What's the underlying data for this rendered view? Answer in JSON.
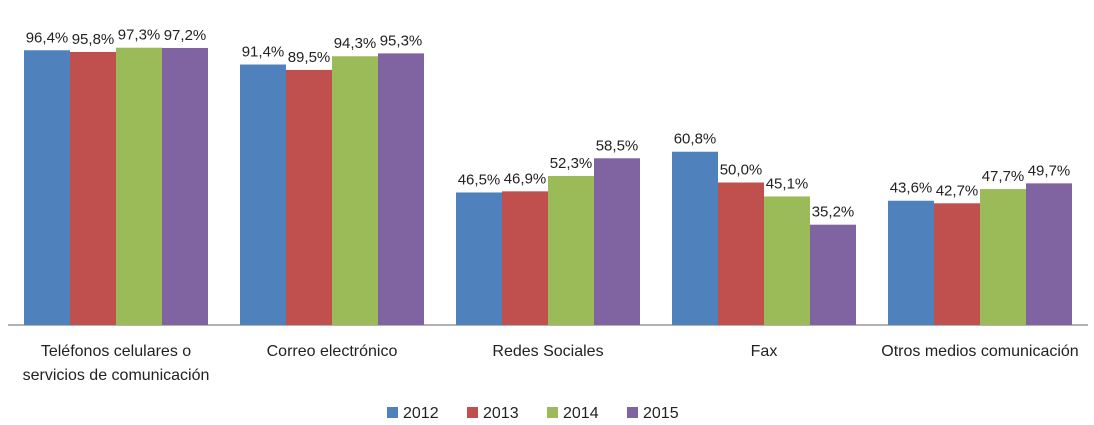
{
  "chart_data": {
    "type": "bar",
    "categories": [
      "Teléfonos celulares o servicios de comunicación",
      "Correo electrónico",
      "Redes Sociales",
      "Fax",
      "Otros medios comunicación"
    ],
    "series": [
      {
        "name": "2012",
        "color": "#4f81bd",
        "values": [
          96.4,
          91.4,
          46.5,
          60.8,
          43.6
        ],
        "value_labels": [
          "96,4%",
          "91,4%",
          "46,5%",
          "60,8%",
          "43,6%"
        ]
      },
      {
        "name": "2013",
        "color": "#c0504d",
        "values": [
          95.8,
          89.5,
          46.9,
          50.0,
          42.7
        ],
        "value_labels": [
          "95,8%",
          "89,5%",
          "46,9%",
          "50,0%",
          "42,7%"
        ]
      },
      {
        "name": "2014",
        "color": "#9bbb59",
        "values": [
          97.3,
          94.3,
          52.3,
          45.1,
          47.7
        ],
        "value_labels": [
          "97,3%",
          "94,3%",
          "52,3%",
          "45,1%",
          "47,7%"
        ]
      },
      {
        "name": "2015",
        "color": "#8064a2",
        "values": [
          97.2,
          95.3,
          58.5,
          35.2,
          49.7
        ],
        "value_labels": [
          "97,2%",
          "95,3%",
          "58,5%",
          "35,2%",
          "49,7%"
        ]
      }
    ],
    "ylim": [
      0,
      100
    ],
    "legend": "bottom"
  }
}
